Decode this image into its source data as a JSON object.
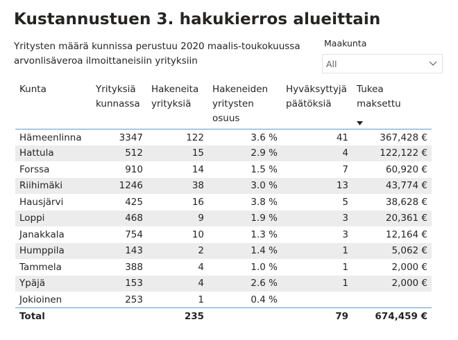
{
  "title": "Kustannustuen 3. hakukierros alueittain",
  "subtitle": "Yritysten määrä kunnissa perustuu 2020 maalis-toukokuussa arvonlisäveroa ilmoittaneisiin yrityksiin",
  "slicer": {
    "label": "Maakunta",
    "value": "All",
    "icon": "chevron-down-icon"
  },
  "table": {
    "headers": [
      "Kunta",
      "Yrityksiä kunnassa",
      "Hakeneita yrityksiä",
      "Hakeneiden yritysten osuus",
      "Hyväksyttyjä päätöksiä",
      "Tukea maksettu"
    ],
    "sort_icon": "sort-descending-icon",
    "rows": [
      [
        "Hämeenlinna",
        "3347",
        "122",
        "3.6 %",
        "41",
        "367,428 €"
      ],
      [
        "Hattula",
        "512",
        "15",
        "2.9 %",
        "4",
        "122,122 €"
      ],
      [
        "Forssa",
        "910",
        "14",
        "1.5 %",
        "7",
        "60,920 €"
      ],
      [
        "Riihimäki",
        "1246",
        "38",
        "3.0 %",
        "13",
        "43,774 €"
      ],
      [
        "Hausjärvi",
        "425",
        "16",
        "3.8 %",
        "5",
        "38,628 €"
      ],
      [
        "Loppi",
        "468",
        "9",
        "1.9 %",
        "3",
        "20,361 €"
      ],
      [
        "Janakkala",
        "754",
        "10",
        "1.3 %",
        "3",
        "12,164 €"
      ],
      [
        "Humppila",
        "143",
        "2",
        "1.4 %",
        "1",
        "5,062 €"
      ],
      [
        "Tammela",
        "388",
        "4",
        "1.0 %",
        "1",
        "2,000 €"
      ],
      [
        "Ypäjä",
        "153",
        "4",
        "2.6 %",
        "1",
        "2,000 €"
      ],
      [
        "Jokioinen",
        "253",
        "1",
        "0.4 %",
        "",
        ""
      ]
    ],
    "total": [
      "Total",
      "",
      "235",
      "",
      "79",
      "674,459 €"
    ]
  },
  "colors": {
    "accent_line": "#5b9bd5",
    "band": "#ececec",
    "text": "#252423"
  }
}
